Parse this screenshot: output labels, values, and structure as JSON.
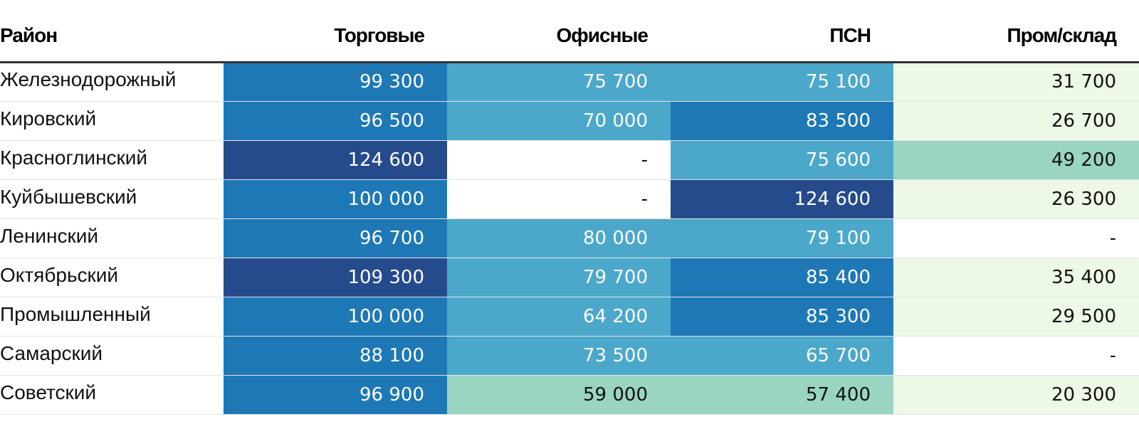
{
  "chart_data": {
    "type": "table",
    "columns": [
      "Район",
      "Торговые",
      "Офисные",
      "ПСН",
      "Пром/склад"
    ],
    "rows": [
      {
        "district": "Железнодорожный",
        "values": [
          99300,
          75700,
          75100,
          31700
        ],
        "labels": [
          "99 300",
          "75 700",
          "75 100",
          "31 700"
        ]
      },
      {
        "district": "Кировский",
        "values": [
          96500,
          70000,
          83500,
          26700
        ],
        "labels": [
          "96 500",
          "70 000",
          "83 500",
          "26 700"
        ]
      },
      {
        "district": "Красноглинский",
        "values": [
          124600,
          null,
          75600,
          49200
        ],
        "labels": [
          "124 600",
          "-",
          "75 600",
          "49 200"
        ]
      },
      {
        "district": "Куйбышевский",
        "values": [
          100000,
          null,
          124600,
          26300
        ],
        "labels": [
          "100 000",
          "-",
          "124 600",
          "26 300"
        ]
      },
      {
        "district": "Ленинский",
        "values": [
          96700,
          80000,
          79100,
          null
        ],
        "labels": [
          "96 700",
          "80 000",
          "79 100",
          "-"
        ]
      },
      {
        "district": "Октябрьский",
        "values": [
          109300,
          79700,
          85400,
          35400
        ],
        "labels": [
          "109 300",
          "79 700",
          "85 400",
          "35 400"
        ]
      },
      {
        "district": "Промышленный",
        "values": [
          100000,
          64200,
          85300,
          29500
        ],
        "labels": [
          "100 000",
          "64 200",
          "85 300",
          "29 500"
        ]
      },
      {
        "district": "Самарский",
        "values": [
          88100,
          73500,
          65700,
          null
        ],
        "labels": [
          "88 100",
          "73 500",
          "65 700",
          "-"
        ]
      },
      {
        "district": "Советский",
        "values": [
          96900,
          59000,
          57400,
          20300
        ],
        "labels": [
          "96 900",
          "59 000",
          "57 400",
          "20 300"
        ]
      }
    ],
    "color_scale": [
      {
        "min": 0,
        "max": 40000,
        "color": "#edf8e6",
        "text": "#111111"
      },
      {
        "min": 40000,
        "max": 60000,
        "color": "#99d5c1",
        "text": "#111111"
      },
      {
        "min": 60000,
        "max": 81000,
        "color": "#4ba8cb",
        "text": "#ffffff"
      },
      {
        "min": 81000,
        "max": 105000,
        "color": "#1e78b6",
        "text": "#ffffff"
      },
      {
        "min": 105000,
        "max": 1000000,
        "color": "#254b8c",
        "text": "#ffffff"
      }
    ],
    "empty_cell": {
      "color": "#ffffff",
      "text": "#111111"
    }
  }
}
